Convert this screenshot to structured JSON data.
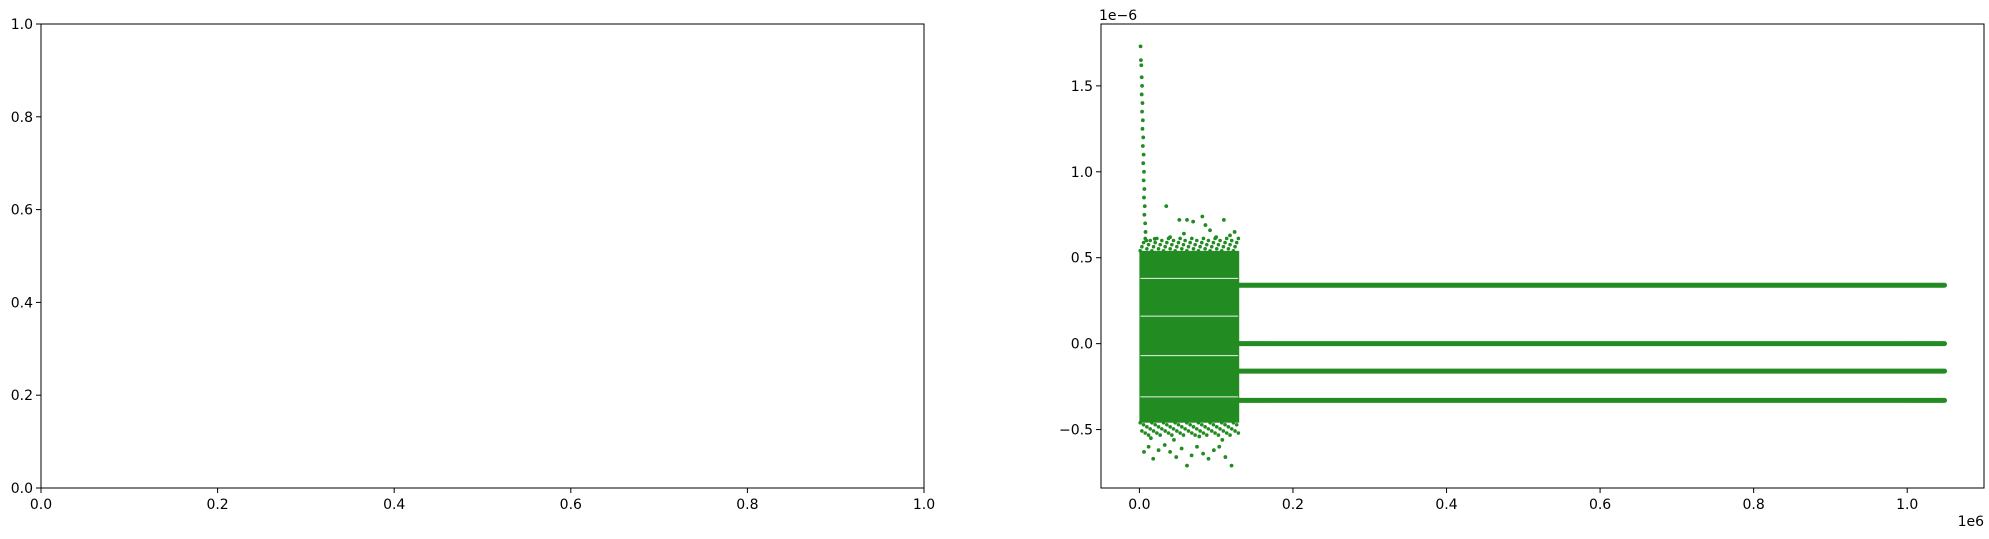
{
  "chart_data": [
    {
      "type": "scatter",
      "title": "",
      "xlabel": "",
      "ylabel": "",
      "xlim": [
        0,
        1
      ],
      "ylim": [
        0,
        1
      ],
      "x_ticks": [
        "0.0",
        "0.2",
        "0.4",
        "0.6",
        "0.8",
        "1.0"
      ],
      "y_ticks": [
        "0.0",
        "0.2",
        "0.4",
        "0.6",
        "0.8",
        "1.0"
      ],
      "series": []
    },
    {
      "type": "scatter",
      "title": "",
      "xlabel": "",
      "ylabel": "",
      "xlim": [
        -50000,
        1100000
      ],
      "ylim": [
        -8.4e-07,
        1.86e-06
      ],
      "x_ticks": [
        "0.0",
        "0.2",
        "0.4",
        "0.6",
        "0.8",
        "1.0"
      ],
      "x_tick_values": [
        0,
        200000,
        400000,
        600000,
        800000,
        1000000
      ],
      "y_ticks": [
        "−0.5",
        "0.0",
        "0.5",
        "1.0",
        "1.5"
      ],
      "y_tick_values": [
        -5e-07,
        0,
        5e-07,
        1e-06,
        1.5e-06
      ],
      "x_offset_text": "1e6",
      "y_offset_text": "1e−6",
      "grid": false,
      "color": "#228b22",
      "dense_region": {
        "x": [
          0,
          130000
        ],
        "y": [
          -4.6e-07,
          5.4e-07
        ]
      },
      "levels": [
        3.4e-07,
        0,
        -1.6e-07,
        -3.3e-07
      ],
      "level_x": [
        130000,
        1048576
      ],
      "outliers": [
        {
          "x": 1500,
          "y": 1.73e-06
        },
        {
          "x": 2000,
          "y": 1.65e-06
        },
        {
          "x": 2500,
          "y": 1.62e-06
        },
        {
          "x": 3000,
          "y": 1.55e-06
        },
        {
          "x": 3500,
          "y": 1.5e-06
        },
        {
          "x": 3000,
          "y": 1.45e-06
        },
        {
          "x": 4000,
          "y": 1.4e-06
        },
        {
          "x": 3500,
          "y": 1.35e-06
        },
        {
          "x": 4500,
          "y": 1.3e-06
        },
        {
          "x": 4000,
          "y": 1.25e-06
        },
        {
          "x": 5000,
          "y": 1.2e-06
        },
        {
          "x": 4500,
          "y": 1.15e-06
        },
        {
          "x": 5500,
          "y": 1.1e-06
        },
        {
          "x": 5000,
          "y": 1.05e-06
        },
        {
          "x": 6000,
          "y": 1e-06
        },
        {
          "x": 5500,
          "y": 9.5e-07
        },
        {
          "x": 6500,
          "y": 9e-07
        },
        {
          "x": 6000,
          "y": 8.5e-07
        },
        {
          "x": 7000,
          "y": 8e-07
        },
        {
          "x": 6500,
          "y": 7.5e-07
        },
        {
          "x": 7500,
          "y": 7e-07
        },
        {
          "x": 8000,
          "y": 6.5e-07
        },
        {
          "x": 9000,
          "y": 6e-07
        },
        {
          "x": 35000,
          "y": 8e-07
        },
        {
          "x": 52000,
          "y": 7.2e-07
        },
        {
          "x": 62000,
          "y": 7.2e-07
        },
        {
          "x": 70000,
          "y": 7.1e-07
        },
        {
          "x": 82000,
          "y": 7.4e-07
        },
        {
          "x": 86000,
          "y": 6.9e-07
        },
        {
          "x": 92000,
          "y": 6.6e-07
        },
        {
          "x": 110000,
          "y": 7.2e-07
        },
        {
          "x": 118000,
          "y": 6.3e-07
        },
        {
          "x": 124000,
          "y": 6.5e-07
        },
        {
          "x": 20000,
          "y": 6.1e-07
        },
        {
          "x": 40000,
          "y": 6.2e-07
        },
        {
          "x": 58000,
          "y": 6.4e-07
        },
        {
          "x": 100000,
          "y": 6.2e-07
        },
        {
          "x": 6000,
          "y": -6.3e-07
        },
        {
          "x": 12000,
          "y": -6e-07
        },
        {
          "x": 18000,
          "y": -6.7e-07
        },
        {
          "x": 25000,
          "y": -6.2e-07
        },
        {
          "x": 33000,
          "y": -5.9e-07
        },
        {
          "x": 40000,
          "y": -6.3e-07
        },
        {
          "x": 48000,
          "y": -6.6e-07
        },
        {
          "x": 55000,
          "y": -6.1e-07
        },
        {
          "x": 62000,
          "y": -7.1e-07
        },
        {
          "x": 68000,
          "y": -6.5e-07
        },
        {
          "x": 75000,
          "y": -6e-07
        },
        {
          "x": 83000,
          "y": -6.4e-07
        },
        {
          "x": 90000,
          "y": -6.7e-07
        },
        {
          "x": 97000,
          "y": -6.2e-07
        },
        {
          "x": 104000,
          "y": -6e-07
        },
        {
          "x": 112000,
          "y": -6.6e-07
        },
        {
          "x": 120000,
          "y": -7.1e-07
        },
        {
          "x": 15000,
          "y": -5.5e-07
        },
        {
          "x": 45000,
          "y": -5.6e-07
        },
        {
          "x": 78000,
          "y": -5.4e-07
        },
        {
          "x": 108000,
          "y": -5.6e-07
        }
      ]
    }
  ]
}
